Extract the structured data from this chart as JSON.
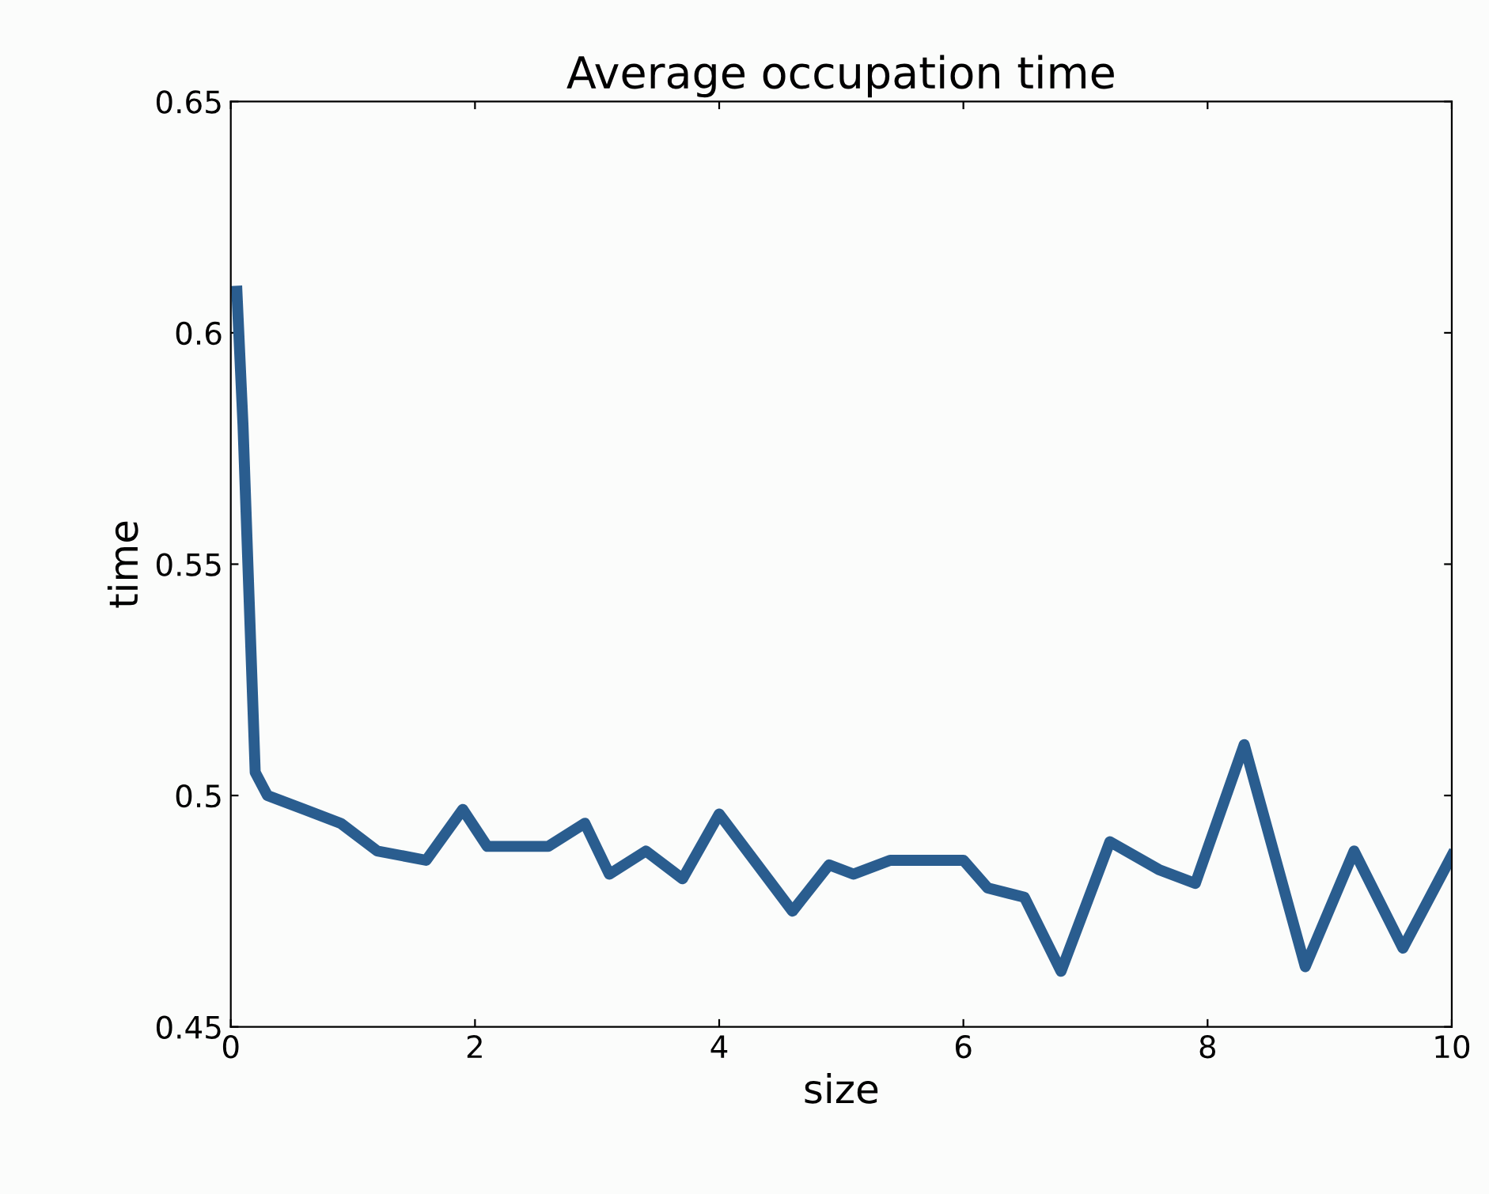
{
  "chart_data": {
    "type": "line",
    "title": "Average occupation time",
    "xlabel": "size",
    "ylabel": "time",
    "series": [
      {
        "color": "#2a5d8f",
        "x": [
          0.05,
          0.1,
          0.2,
          0.3,
          0.6,
          0.9,
          1.2,
          1.6,
          1.9,
          2.1,
          2.6,
          2.9,
          3.1,
          3.4,
          3.7,
          4.0,
          4.4,
          4.6,
          4.9,
          5.1,
          5.4,
          6.0,
          6.2,
          6.5,
          6.8,
          7.2,
          7.6,
          7.9,
          8.3,
          8.8,
          9.2,
          9.6,
          10.0
        ],
        "values": [
          0.609,
          0.58,
          0.505,
          0.5,
          0.497,
          0.494,
          0.488,
          0.486,
          0.497,
          0.489,
          0.489,
          0.494,
          0.483,
          0.488,
          0.482,
          0.496,
          0.482,
          0.475,
          0.485,
          0.483,
          0.486,
          0.486,
          0.48,
          0.478,
          0.462,
          0.49,
          0.484,
          0.481,
          0.511,
          0.463,
          0.488,
          0.467,
          0.487
        ]
      }
    ],
    "xlim": [
      0,
      10
    ],
    "ylim": [
      0.45,
      0.65
    ],
    "xticks": [
      0,
      2,
      4,
      6,
      8,
      10
    ],
    "yticks": [
      0.45,
      0.5,
      0.55,
      0.6,
      0.65
    ],
    "grid": false,
    "legend": false
  }
}
